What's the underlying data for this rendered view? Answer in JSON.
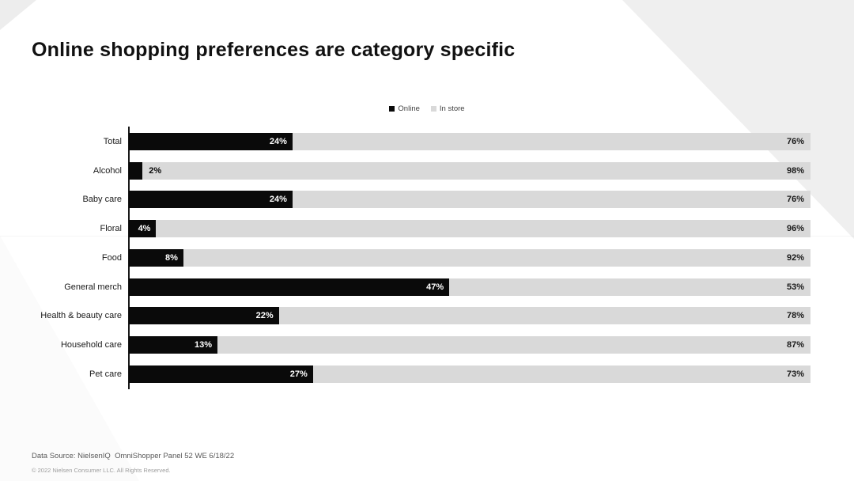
{
  "slide": {
    "title": "Online shopping preferences are category specific",
    "footer": {
      "data_source": "Data Source: NielsenIQ  OmniShopper Panel 52 WE 6/18/22",
      "copyright": "© 2022 Nielsen Consumer LLC. All Rights Reserved."
    }
  },
  "colors": {
    "online_bar": "#0a0a0a",
    "instore_bar": "#d9d9d9",
    "background": "#ffffff",
    "decor_triangle": "#efefef"
  },
  "chart_data": {
    "type": "bar",
    "orientation": "horizontal",
    "stacked": true,
    "title": "Online shopping preferences are category specific",
    "xlabel": "",
    "ylabel": "",
    "xlim": [
      0,
      100
    ],
    "grid": false,
    "legend_position": "top-center",
    "value_format": "percent",
    "categories": [
      "Total",
      "Alcohol",
      "Baby care",
      "Floral",
      "Food",
      "General merch",
      "Health & beauty care",
      "Household care",
      "Pet care"
    ],
    "series": [
      {
        "name": "Online",
        "color": "#0a0a0a",
        "values": [
          24,
          2,
          24,
          4,
          8,
          47,
          22,
          13,
          27
        ]
      },
      {
        "name": "In store",
        "color": "#d9d9d9",
        "values": [
          76,
          98,
          76,
          96,
          92,
          53,
          78,
          87,
          73
        ]
      }
    ]
  }
}
